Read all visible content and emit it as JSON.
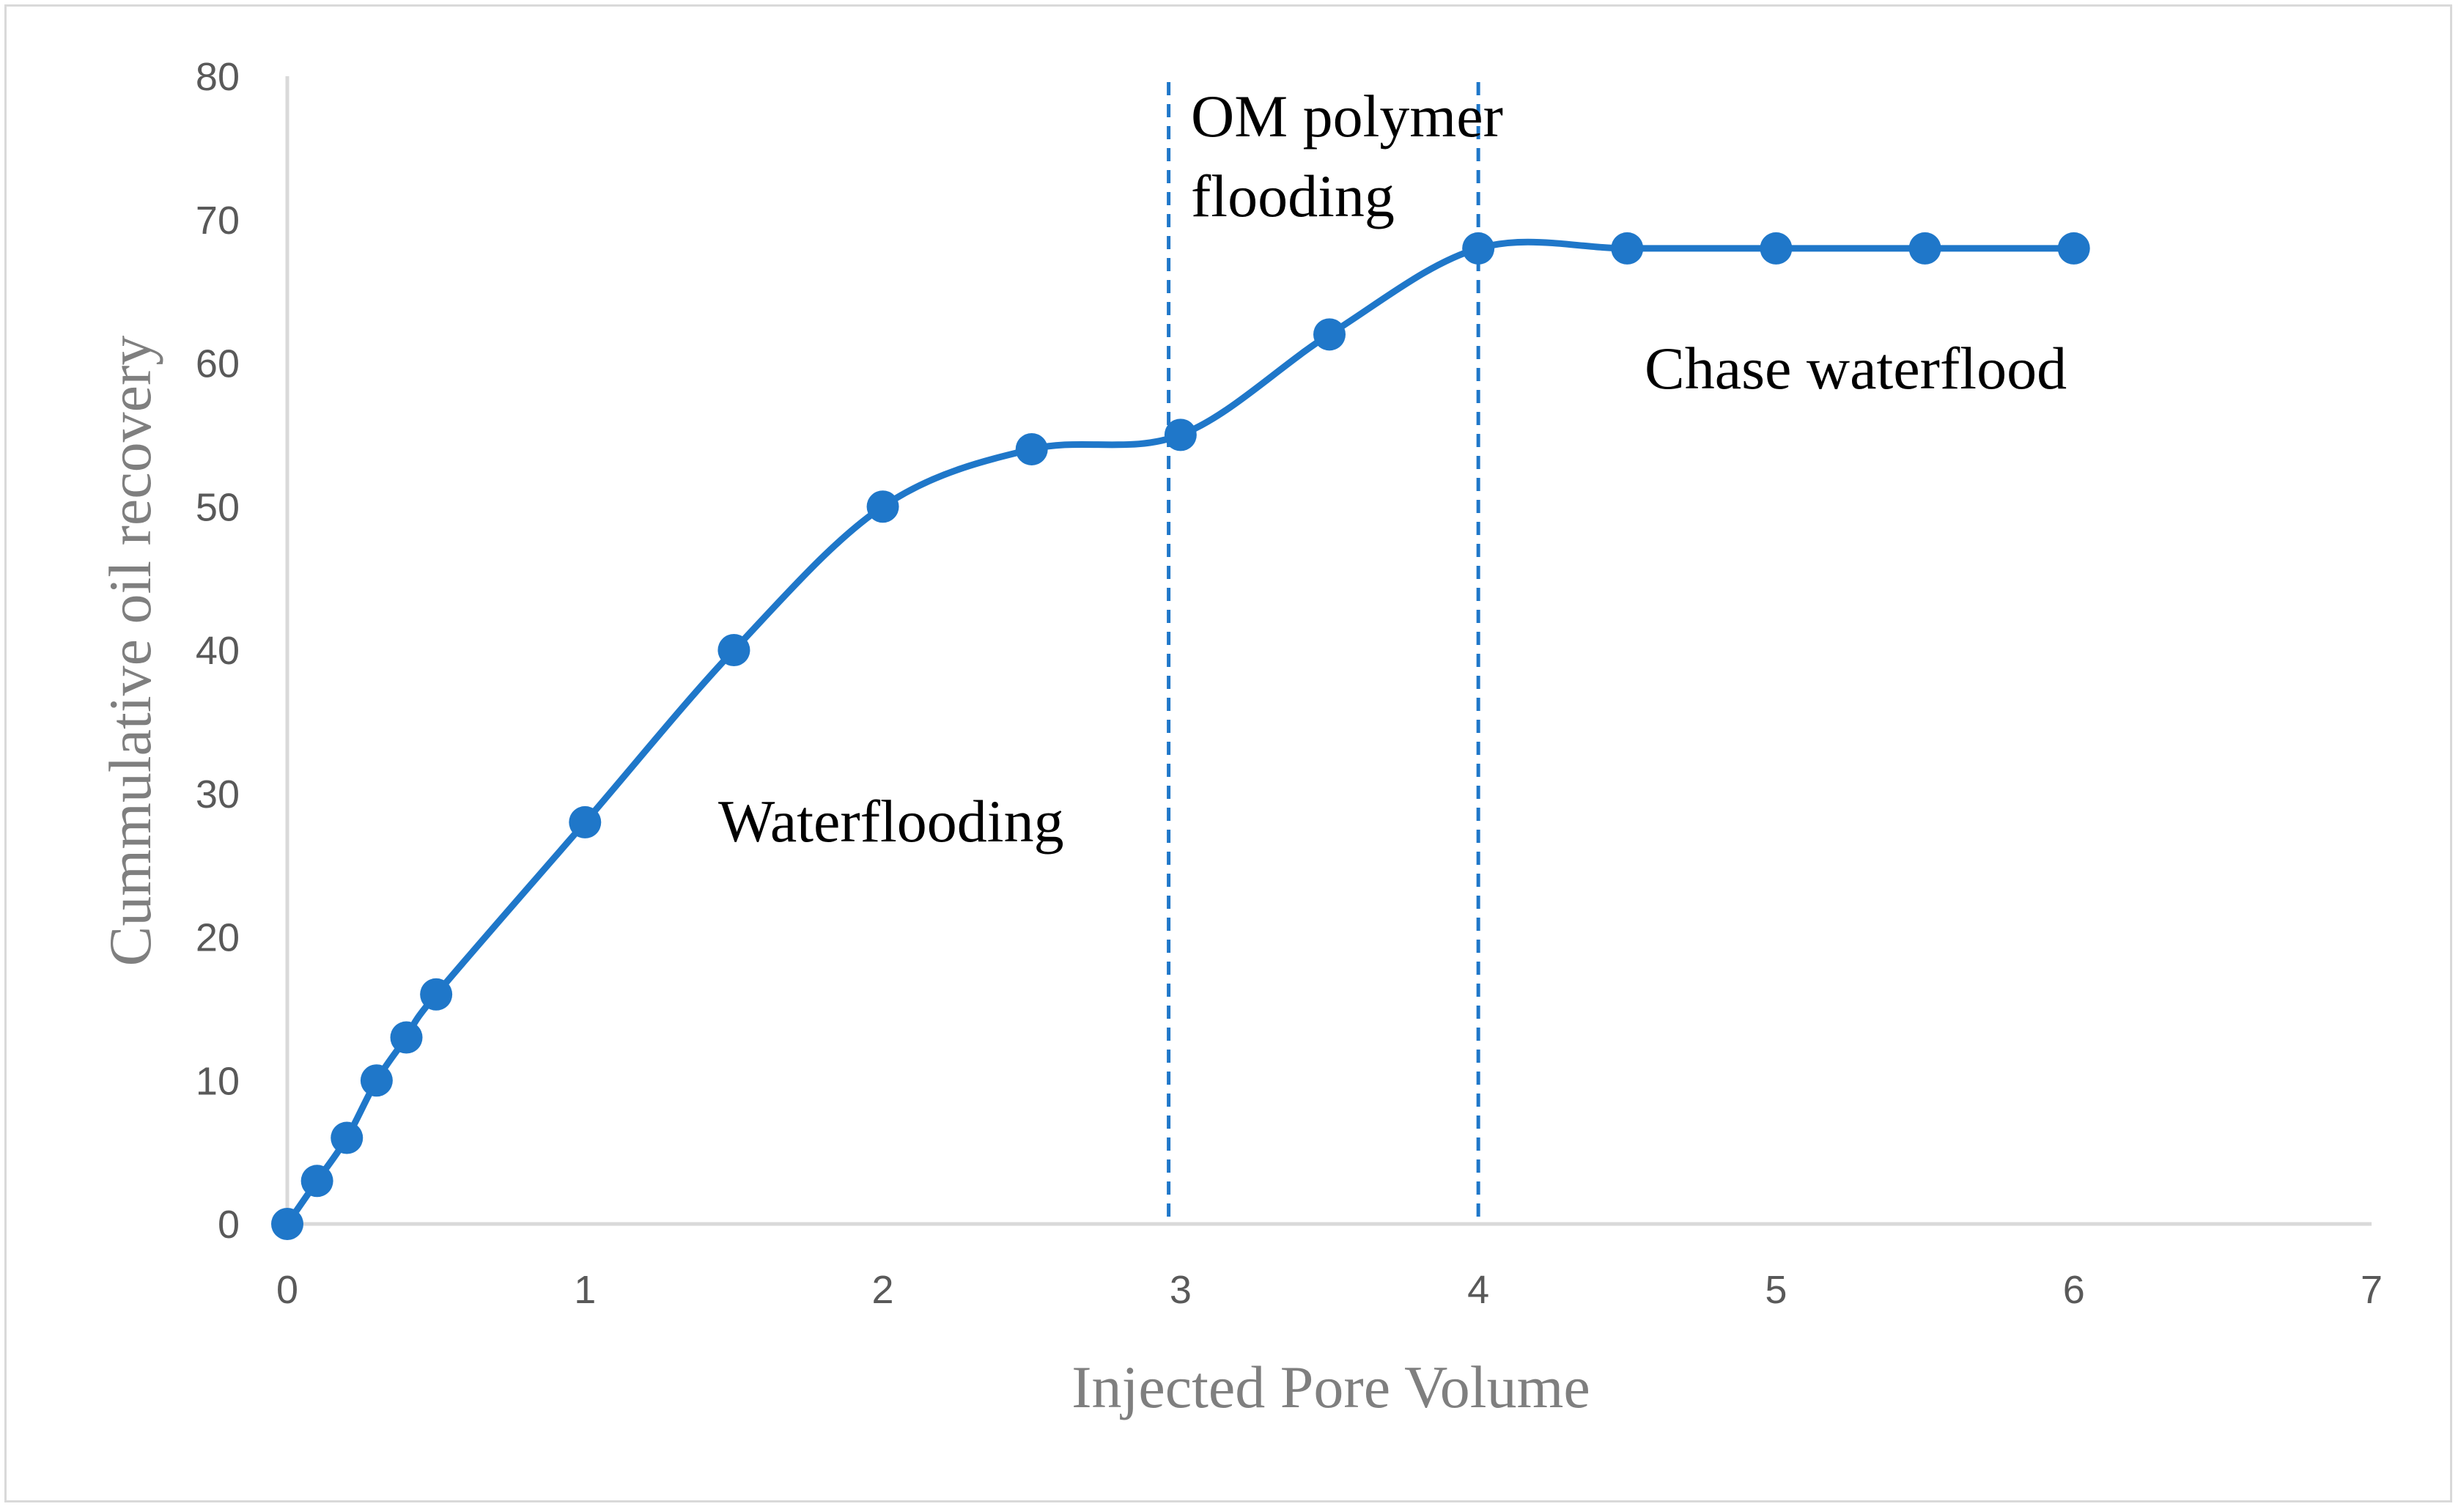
{
  "chart_data": {
    "type": "line",
    "title": "",
    "xlabel": "Injected Pore Volume",
    "ylabel": "Cummulative oil recovery",
    "xlim": [
      0,
      7
    ],
    "ylim": [
      0,
      80
    ],
    "x_ticks": [
      "0",
      "1",
      "2",
      "3",
      "4",
      "5",
      "6",
      "7"
    ],
    "y_ticks": [
      "0",
      "10",
      "20",
      "30",
      "40",
      "50",
      "60",
      "70",
      "80"
    ],
    "grid": false,
    "legend": "none",
    "series": [
      {
        "name": "Cummulative oil recovery",
        "color": "#1F77C9",
        "x": [
          0,
          0.1,
          0.2,
          0.3,
          0.4,
          0.5,
          1,
          1.5,
          2,
          2.5,
          3,
          3.5,
          4,
          4.5,
          5,
          5.5,
          6
        ],
        "y": [
          0,
          3,
          6,
          10,
          13,
          16,
          28,
          40,
          50,
          54,
          55,
          62,
          68,
          68,
          68,
          68,
          68
        ]
      }
    ],
    "vertical_lines": [
      {
        "x": 2.96,
        "style": "dashed",
        "color": "#1F77C9"
      },
      {
        "x": 4.0,
        "style": "dashed",
        "color": "#1F77C9"
      }
    ],
    "annotations": [
      {
        "id": "waterflooding",
        "lines": [
          "Waterflooding"
        ]
      },
      {
        "id": "om-polymer",
        "lines": [
          "OM polymer",
          "flooding"
        ]
      },
      {
        "id": "chase",
        "lines": [
          "Chase waterflood"
        ]
      }
    ],
    "colors": {
      "axis": "#d9d9d9",
      "tick_text": "#595959",
      "axis_title": "#7f7f7f",
      "annotation_text": "#000000"
    }
  }
}
